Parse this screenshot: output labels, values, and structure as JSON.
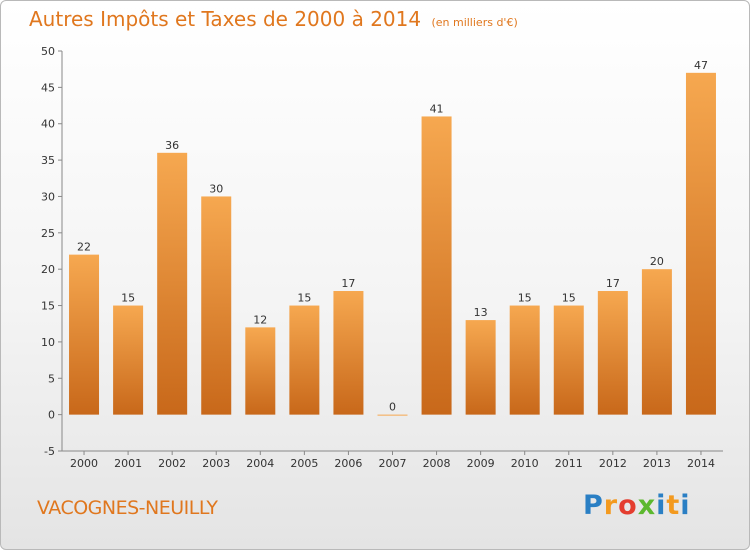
{
  "title": {
    "main": "Autres Impôts et Taxes de 2000 à 2014",
    "unit": "(en milliers d'€)"
  },
  "commune": "VACOGNES-NEUILLY",
  "logo": {
    "letters": [
      "P",
      "r",
      "o",
      "x",
      "i",
      "t",
      "i"
    ],
    "colors": [
      "#2a7fc4",
      "#f39a1f",
      "#e43d2f",
      "#5cb82e",
      "#2a7fc4",
      "#f39a1f",
      "#2a7fc4"
    ]
  },
  "colors": {
    "bar_top": "#f6a850",
    "bar_bottom": "#c8681a",
    "title": "#e0771e"
  },
  "chart_data": {
    "type": "bar",
    "title": "Autres Impôts et Taxes de 2000 à 2014",
    "subtitle": "(en milliers d'€)",
    "categories": [
      "2000",
      "2001",
      "2002",
      "2003",
      "2004",
      "2005",
      "2006",
      "2007",
      "2008",
      "2009",
      "2010",
      "2011",
      "2012",
      "2013",
      "2014"
    ],
    "values": [
      22,
      15,
      36,
      30,
      12,
      15,
      17,
      0,
      41,
      13,
      15,
      15,
      17,
      20,
      47
    ],
    "ylim": [
      -5,
      50
    ],
    "yticks": [
      -5,
      0,
      5,
      10,
      15,
      20,
      25,
      30,
      35,
      40,
      45,
      50
    ],
    "grid": false,
    "legend": "none"
  }
}
